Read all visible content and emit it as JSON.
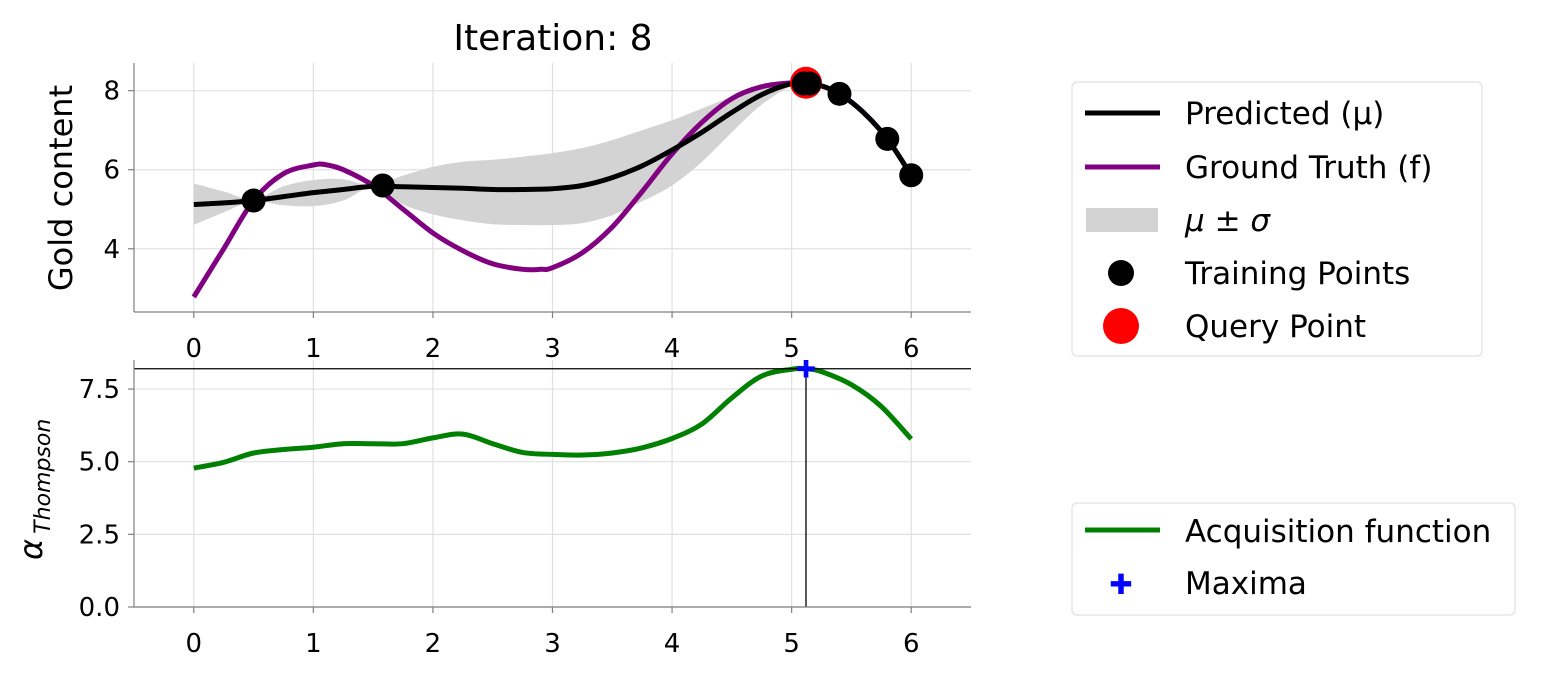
{
  "chart_data": [
    {
      "type": "line",
      "title": "Iteration: 8",
      "ylabel": "Gold content",
      "xlim": [
        -0.5,
        6.5
      ],
      "ylim": [
        2.4,
        8.7
      ],
      "xticks": [
        "0",
        "1",
        "2",
        "3",
        "4",
        "5",
        "6"
      ],
      "yticks": [
        "4",
        "6",
        "8"
      ],
      "grid": true,
      "series": [
        {
          "name": "Predicted (μ)",
          "color": "#000000",
          "x": [
            0,
            0.25,
            0.5,
            0.75,
            1.0,
            1.25,
            1.5,
            1.75,
            2.0,
            2.25,
            2.5,
            2.75,
            3.0,
            3.25,
            3.5,
            3.75,
            4.0,
            4.25,
            4.5,
            4.75,
            5.0,
            5.12,
            5.25,
            5.4,
            5.6,
            5.8,
            6.0
          ],
          "y": [
            5.12,
            5.16,
            5.22,
            5.32,
            5.42,
            5.5,
            5.58,
            5.57,
            5.55,
            5.53,
            5.5,
            5.5,
            5.52,
            5.6,
            5.8,
            6.1,
            6.5,
            6.95,
            7.45,
            7.9,
            8.18,
            8.18,
            8.12,
            7.92,
            7.45,
            6.78,
            5.86
          ]
        },
        {
          "name": "Ground Truth (f)",
          "color": "#800080",
          "x": [
            0,
            0.25,
            0.5,
            0.75,
            1.0,
            1.1,
            1.25,
            1.5,
            1.75,
            2.0,
            2.25,
            2.5,
            2.75,
            2.9,
            3.0,
            3.25,
            3.5,
            3.75,
            4.0,
            4.25,
            4.5,
            4.75,
            5.0,
            5.12,
            5.25,
            5.4,
            5.6,
            5.8,
            6.0
          ],
          "y": [
            2.78,
            4.0,
            5.22,
            5.9,
            6.12,
            6.13,
            6.0,
            5.6,
            5.0,
            4.4,
            3.95,
            3.62,
            3.48,
            3.48,
            3.52,
            3.9,
            4.55,
            5.45,
            6.4,
            7.2,
            7.8,
            8.1,
            8.2,
            8.18,
            8.12,
            7.92,
            7.45,
            6.78,
            5.86
          ]
        },
        {
          "name": "μ ± σ",
          "color": "#d3d3d3",
          "x": [
            0,
            0.25,
            0.5,
            0.75,
            1.0,
            1.25,
            1.5,
            1.75,
            2.0,
            2.25,
            2.5,
            2.75,
            3.0,
            3.25,
            3.5,
            3.75,
            4.0,
            4.25,
            4.5,
            4.75,
            5.0,
            5.12,
            5.25,
            5.4,
            5.6,
            5.8,
            6.0
          ],
          "upper": [
            5.65,
            5.45,
            5.25,
            5.58,
            5.74,
            5.76,
            5.6,
            5.85,
            6.07,
            6.2,
            6.25,
            6.33,
            6.42,
            6.55,
            6.75,
            7.0,
            7.25,
            7.55,
            7.85,
            8.1,
            8.22,
            8.2,
            8.14,
            7.93,
            7.47,
            6.8,
            5.88
          ],
          "lower": [
            4.6,
            4.92,
            5.2,
            5.1,
            5.08,
            5.22,
            5.56,
            5.12,
            4.87,
            4.72,
            4.62,
            4.6,
            4.6,
            4.65,
            4.85,
            5.2,
            5.6,
            6.2,
            6.95,
            7.65,
            8.12,
            8.16,
            8.1,
            7.91,
            7.43,
            6.76,
            5.84
          ]
        },
        {
          "name": "Training Points",
          "color": "#000000",
          "type": "scatter",
          "x": [
            0.5,
            1.58,
            5.1,
            5.15,
            5.4,
            5.8,
            6.0
          ],
          "y": [
            5.22,
            5.6,
            8.18,
            8.18,
            7.92,
            6.78,
            5.86
          ]
        },
        {
          "name": "Query Point",
          "color": "#ff0000",
          "type": "scatter",
          "x": [
            5.12
          ],
          "y": [
            8.2
          ]
        }
      ],
      "legend": {
        "placement": "right",
        "entries": [
          "Predicted (μ)",
          "Ground Truth (f)",
          "μ ± σ",
          "Training Points",
          "Query Point"
        ]
      }
    },
    {
      "type": "line",
      "ylabel": "α",
      "ylabel_sub": "Thompson",
      "xlim": [
        -0.5,
        6.5
      ],
      "ylim": [
        0.0,
        8.5
      ],
      "xticks": [
        "0",
        "1",
        "2",
        "3",
        "4",
        "5",
        "6"
      ],
      "yticks": [
        "0.0",
        "2.5",
        "5.0",
        "7.5"
      ],
      "grid": true,
      "series": [
        {
          "name": "Acquisition function",
          "color": "#008000",
          "x": [
            0,
            0.25,
            0.5,
            0.75,
            1.0,
            1.25,
            1.5,
            1.75,
            2.0,
            2.25,
            2.5,
            2.75,
            3.0,
            3.25,
            3.5,
            3.75,
            4.0,
            4.25,
            4.5,
            4.75,
            5.0,
            5.12,
            5.25,
            5.5,
            5.75,
            6.0
          ],
          "y": [
            4.78,
            4.98,
            5.3,
            5.42,
            5.5,
            5.62,
            5.62,
            5.62,
            5.82,
            5.95,
            5.62,
            5.32,
            5.25,
            5.23,
            5.3,
            5.48,
            5.8,
            6.3,
            7.2,
            7.95,
            8.18,
            8.2,
            8.1,
            7.65,
            6.9,
            5.78
          ]
        },
        {
          "name": "Maxima",
          "color": "#0000ff",
          "type": "scatter",
          "x": [
            5.12
          ],
          "y": [
            8.2
          ]
        }
      ],
      "hline": 8.2,
      "vline": 5.12,
      "legend": {
        "placement": "right",
        "entries": [
          "Acquisition function",
          "Maxima"
        ]
      }
    }
  ]
}
